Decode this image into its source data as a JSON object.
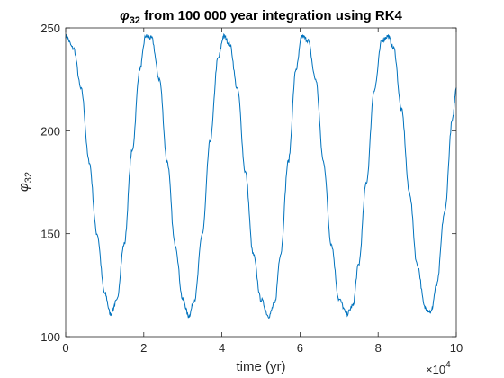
{
  "chart_data": {
    "type": "line",
    "title": {
      "symbol": "φ",
      "subscript": "32",
      "rest": " from 100 000 year integration using RK4"
    },
    "xlabel": "time (yr)",
    "ylabel": {
      "symbol": "φ",
      "subscript": "32"
    },
    "x_scale_exponent": {
      "base": "×10",
      "power": "4"
    },
    "xlim": [
      0,
      10
    ],
    "ylim": [
      100,
      250
    ],
    "xticks": [
      0,
      2,
      4,
      6,
      8,
      10
    ],
    "xtick_labels": [
      "0",
      "2",
      "4",
      "6",
      "8",
      "10"
    ],
    "yticks": [
      100,
      150,
      200,
      250
    ],
    "ytick_labels": [
      "100",
      "150",
      "200",
      "250"
    ],
    "grid": false,
    "line_color": "#0072BD",
    "series": [
      {
        "x": [
          0,
          0.2,
          0.4,
          0.6,
          0.8,
          1.0,
          1.15,
          1.3,
          1.5,
          1.7,
          1.9,
          2.05,
          2.2,
          2.4,
          2.6,
          2.8,
          3.0,
          3.15,
          3.3,
          3.5,
          3.7,
          3.9,
          4.05,
          4.2,
          4.4,
          4.6,
          4.8,
          5.0,
          5.2,
          5.35,
          5.5,
          5.7,
          5.9,
          6.05,
          6.2,
          6.4,
          6.6,
          6.8,
          7.0,
          7.2,
          7.35,
          7.5,
          7.7,
          7.9,
          8.1,
          8.25,
          8.4,
          8.6,
          8.8,
          9.0,
          9.2,
          9.35,
          9.5,
          9.7,
          9.9,
          10.0
        ],
        "y": [
          246,
          240,
          220,
          185,
          150,
          121,
          111,
          117,
          145,
          190,
          230,
          246,
          245,
          225,
          185,
          145,
          118,
          110,
          118,
          150,
          195,
          235,
          246,
          242,
          220,
          180,
          140,
          118,
          110,
          116,
          140,
          185,
          230,
          246,
          244,
          225,
          185,
          145,
          118,
          111,
          115,
          135,
          175,
          220,
          244,
          246,
          240,
          210,
          170,
          135,
          114,
          112,
          125,
          160,
          205,
          221
        ]
      }
    ]
  }
}
